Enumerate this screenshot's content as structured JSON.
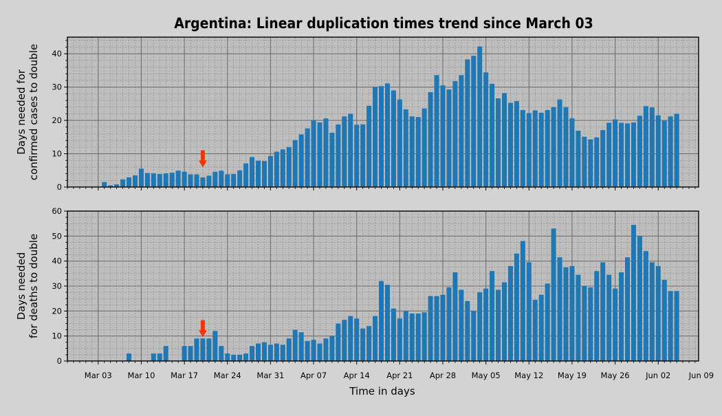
{
  "chart_data": {
    "type": "bar",
    "title": "Argentina: Linear duplication times trend since March 03",
    "xlabel": "Time in days",
    "x_start": "2020-02-28",
    "x_tick_labels": [
      "Mar 03",
      "Mar 10",
      "Mar 17",
      "Mar 24",
      "Mar 31",
      "Apr 07",
      "Apr 14",
      "Apr 21",
      "Apr 28",
      "May 05",
      "May 12",
      "May 19",
      "May 26",
      "Jun 02",
      "Jun 09"
    ],
    "grid": true,
    "panels": [
      {
        "name": "cases",
        "ylabel": [
          "Days needed for",
          "confirmed cases to double"
        ],
        "ylim": [
          0,
          45
        ],
        "y_ticks": [
          0,
          10,
          20,
          30,
          40
        ],
        "marker": {
          "date": "Mar 20",
          "value": 10
        },
        "values": [
          null,
          null,
          null,
          null,
          null,
          1.5,
          0.5,
          0.8,
          2.3,
          2.9,
          3.5,
          5.5,
          4.2,
          4.1,
          3.9,
          4.1,
          4.3,
          4.9,
          4.6,
          3.8,
          3.8,
          2.9,
          3.4,
          4.6,
          4.9,
          3.8,
          3.9,
          5.0,
          7.1,
          9.0,
          7.9,
          7.8,
          9.3,
          10.6,
          11.3,
          12.0,
          14.1,
          15.8,
          17.6,
          20.1,
          19.4,
          20.6,
          16.3,
          18.8,
          21.2,
          22.0,
          18.7,
          18.8,
          24.4,
          30.1,
          30.3,
          31.1,
          29.0,
          26.3,
          23.3,
          21.2,
          21.0,
          23.6,
          28.5,
          33.6,
          30.5,
          29.3,
          31.8,
          33.6,
          38.3,
          39.4,
          42.2,
          34.4,
          31.0,
          26.6,
          28.2,
          25.3,
          25.8,
          23.1,
          22.2,
          23.0,
          22.3,
          23.1,
          24.0,
          26.3,
          24.0,
          20.6,
          16.9,
          15.1,
          14.3,
          14.9,
          17.1,
          19.3,
          20.3,
          19.3,
          19.1,
          19.4,
          21.4,
          24.3,
          23.9,
          21.5,
          19.9,
          21.2,
          22.0
        ]
      },
      {
        "name": "deaths",
        "ylabel": [
          "Days needed",
          "for deaths to double"
        ],
        "ylim": [
          0,
          60
        ],
        "y_ticks": [
          0,
          10,
          20,
          30,
          40,
          50,
          60
        ],
        "marker": {
          "date": "Mar 20",
          "value": 15
        },
        "values": [
          null,
          null,
          null,
          null,
          null,
          null,
          null,
          null,
          null,
          3.0,
          null,
          null,
          null,
          3.0,
          3.0,
          6.0,
          null,
          null,
          6.0,
          6.0,
          9.0,
          9.0,
          9.0,
          12.0,
          6.0,
          3.0,
          2.5,
          2.5,
          3.0,
          6.0,
          7.0,
          7.5,
          6.5,
          7.0,
          6.5,
          9.0,
          12.5,
          11.5,
          8.0,
          8.5,
          7.0,
          9.0,
          10.0,
          15.0,
          16.5,
          18.0,
          17.0,
          13.0,
          14.0,
          18.0,
          32.0,
          30.5,
          21.0,
          17.0,
          20.0,
          19.0,
          19.0,
          19.5,
          26.0,
          26.0,
          26.5,
          29.5,
          35.5,
          28.5,
          24.0,
          20.0,
          27.5,
          29.0,
          36.0,
          28.5,
          31.5,
          38.0,
          43.0,
          48.0,
          39.5,
          24.5,
          26.5,
          31.0,
          53.0,
          41.5,
          37.5,
          38.0,
          34.5,
          30.0,
          29.5,
          36.0,
          39.5,
          34.5,
          29.0,
          35.5,
          41.5,
          54.5,
          50.0,
          44.0,
          39.5,
          38.0,
          32.5,
          28.0,
          28.0
        ]
      }
    ]
  }
}
